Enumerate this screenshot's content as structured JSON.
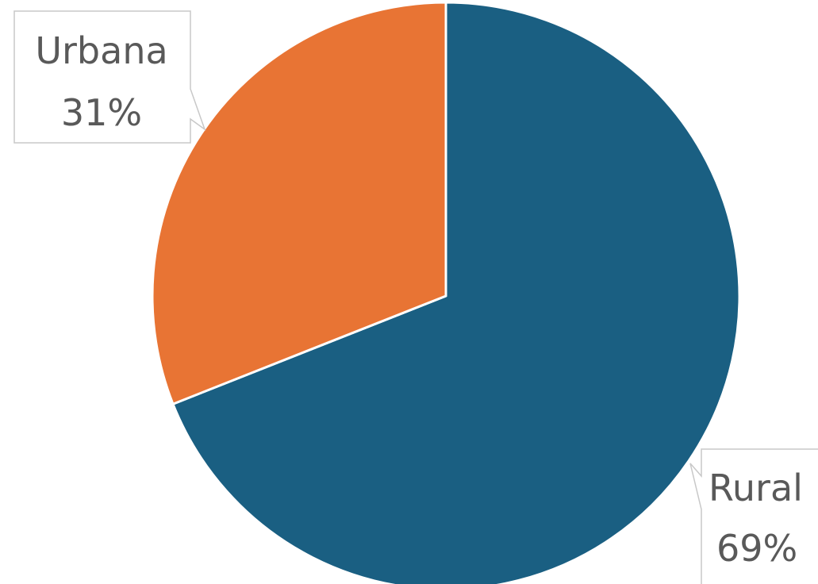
{
  "chart_data": {
    "type": "pie",
    "categories": [
      "Rural",
      "Urbana"
    ],
    "values": [
      69,
      31
    ],
    "value_labels": [
      "69%",
      "31%"
    ],
    "colors": [
      "#1a5f82",
      "#e87434"
    ],
    "start_angle_deg": 0,
    "direction": "clockwise",
    "data_labels": "callouts outside slices"
  }
}
